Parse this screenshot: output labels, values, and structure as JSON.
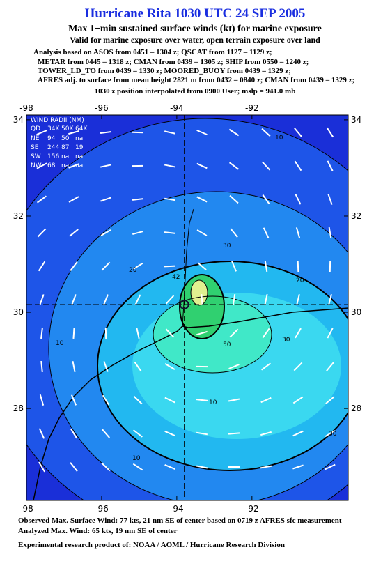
{
  "header": {
    "title": "Hurricane Rita 1030 UTC 24 SEP 2005",
    "subtitle": "Max 1−min sustained surface winds (kt) for marine exposure",
    "validity": "Valid for marine exposure over water, open terrain exposure over land",
    "analysis_lines": [
      "Analysis based on  ASOS from 0451 – 1304 z;  QSCAT from 1127 – 1129 z;",
      "METAR from 0445 – 1318 z;  CMAN from 0439 – 1305 z;  SHIP from 0550 – 1240 z;",
      "TOWER_LD_TO from 0439 – 1330 z;  MOORED_BUOY from 0439 – 1329 z;",
      "AFRES adj. to surface from mean height 2821 m from 0432 – 0840 z;  CMAN from 0439 – 1329 z;"
    ],
    "position_note": "1030 z position interpolated from 0900 User; mslp = 941.0 mb"
  },
  "map": {
    "xlim": [
      -98,
      -89.44
    ],
    "ylim": [
      26.09,
      34.1
    ],
    "xticks": [
      -98,
      -96,
      -94,
      -92
    ],
    "yticks": [
      28,
      30,
      32,
      34
    ],
    "center": {
      "lon": -93.8,
      "lat": 30.16
    },
    "contour_labels": [
      10,
      10,
      10,
      10,
      20,
      20,
      30,
      30,
      30,
      42,
      50
    ],
    "wind_radii": {
      "title": "WIND RADII (NM)",
      "header": [
        "QD",
        "34K",
        "50K",
        "64K"
      ],
      "rows": [
        [
          "NE",
          "94",
          "50",
          "na"
        ],
        [
          "SE",
          "244",
          "87",
          "19"
        ],
        [
          "SW",
          "156",
          "na",
          "na"
        ],
        [
          "NW",
          "68",
          "na",
          "na"
        ]
      ]
    }
  },
  "footer": {
    "observed": "Observed Max. Surface Wind: 77 kts, 21 nm SE of center based on 0719 z AFRES sfc measurement",
    "analyzed": "Analyzed Max. Wind: 65 kts, 19 nm SE of center",
    "credit": "Experimental research product of:  NOAA / AOML / Hurricane Research Division"
  }
}
